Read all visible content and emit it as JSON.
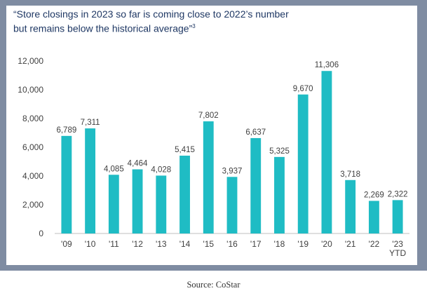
{
  "title_line1": "“Store closings in 2023 so far is coming close to 2022’s number",
  "title_line2": "but remains below the historical average”",
  "title_superscript": "3",
  "caption": "Source: CoStar",
  "colors": {
    "bar": "#1fbcc4",
    "frame": "#7f8ca2",
    "title": "#1f3864",
    "grid": "#d9d9d9"
  },
  "chart_data": {
    "type": "bar",
    "categories": [
      "'09",
      "'10",
      "'11",
      "'12",
      "'13",
      "'14",
      "'15",
      "'16",
      "'17",
      "'18",
      "'19",
      "'20",
      "'21",
      "'22",
      "'23\nYTD"
    ],
    "values": [
      6789,
      7311,
      4085,
      4464,
      4028,
      5415,
      7802,
      3937,
      6637,
      5325,
      9670,
      11306,
      3718,
      2269,
      2322
    ],
    "data_labels": [
      "6,789",
      "7,311",
      "4,085",
      "4,464",
      "4,028",
      "5,415",
      "7,802",
      "3,937",
      "6,637",
      "5,325",
      "9,670",
      "11,306",
      "3,718",
      "2,269",
      "2,322"
    ],
    "ylim": [
      0,
      12000
    ],
    "yticks": [
      0,
      2000,
      4000,
      6000,
      8000,
      10000,
      12000
    ],
    "ytick_labels": [
      "0",
      "2,000",
      "4,000",
      "6,000",
      "8,000",
      "10,000",
      "12,000"
    ],
    "grid": false,
    "xlabel": "",
    "ylabel": ""
  }
}
